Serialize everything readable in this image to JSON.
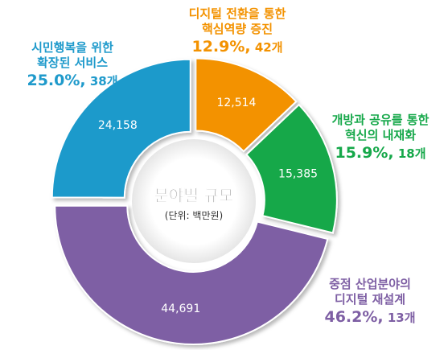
{
  "chart_data": {
    "type": "pie",
    "title": "분야별 규모",
    "subtitle": "(단위: 백만원)",
    "colors": {
      "orange": "#F39200",
      "green": "#16A84A",
      "purple": "#7E5FA4",
      "blue": "#1F9ACB"
    },
    "series": [
      {
        "name_lines": [
          "디지털 전환을 통한",
          "핵심역량 증진"
        ],
        "value": 12514,
        "value_label": "12,514",
        "percent_label": "12.9%",
        "count_label": "42개",
        "color": "#F39200"
      },
      {
        "name_lines": [
          "개방과 공유를 통한",
          "혁신의 내재화"
        ],
        "value": 15385,
        "value_label": "15,385",
        "percent_label": "15.9%",
        "count_label": "18개",
        "color": "#16A84A"
      },
      {
        "name_lines": [
          "중점 산업분야의",
          "디지털 재설계"
        ],
        "value": 44691,
        "value_label": "44,691",
        "percent_label": "46.2%",
        "count_label": "13개",
        "color": "#7E5FA4"
      },
      {
        "name_lines": [
          "시민행복을 위한",
          "확장된 서비스"
        ],
        "value": 24158,
        "value_label": "24,158",
        "percent_label": "25.0%",
        "count_label": "38개",
        "color": "#1F9ACB"
      }
    ]
  }
}
